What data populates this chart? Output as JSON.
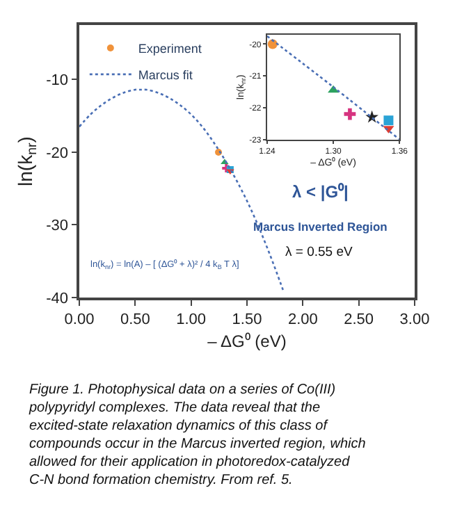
{
  "chart_data": [
    {
      "type": "scatter",
      "xlabel": "– ΔG⁰ (eV)",
      "ylabel": "ln(k$_{nr}$)",
      "xlim": [
        0,
        3
      ],
      "xticks": [
        {
          "value": 0,
          "label": "0.00"
        },
        {
          "value": 0.5,
          "label": "0.50"
        },
        {
          "value": 1,
          "label": "1.00"
        },
        {
          "value": 1.5,
          "label": "1.50"
        },
        {
          "value": 2,
          "label": "2.00"
        },
        {
          "value": 2.5,
          "label": "2.50"
        },
        {
          "value": 3,
          "label": "3.00"
        }
      ],
      "ylim": [
        -40,
        -2.5
      ],
      "yticks": [
        -40,
        -30,
        -20,
        -10
      ],
      "legend": "top left",
      "series": [
        {
          "name": "Experiment",
          "color": "#f0923a",
          "marker": "circle",
          "x": [
            1.245
          ],
          "values": [
            -20.0
          ]
        },
        {
          "color": "#2ca25f",
          "marker": "triangle",
          "x": [
            1.3
          ],
          "values": [
            -21.4
          ]
        },
        {
          "color": "#d6337f",
          "marker": "cross",
          "x": [
            1.315
          ],
          "values": [
            -22.2
          ]
        },
        {
          "color": "#2aa3d6",
          "marker": "square",
          "x": [
            1.35
          ],
          "values": [
            -22.4
          ]
        },
        {
          "color": "#e03c31",
          "marker": "triangle-down",
          "x": [
            1.35
          ],
          "values": [
            -22.6
          ]
        },
        {
          "name": "Marcus fit",
          "type": "line",
          "color": "#4a6fb5",
          "line_style": "dotted",
          "x": [
            0,
            0.1,
            0.2,
            0.3,
            0.4,
            0.5,
            0.55,
            0.6,
            0.7,
            0.8,
            0.9,
            1.0,
            1.1,
            1.2,
            1.3,
            1.4,
            1.5,
            1.6,
            1.7,
            1.8,
            1.83
          ],
          "values": [
            -16.5,
            -14.8,
            -13.5,
            -12.5,
            -11.8,
            -11.4,
            -11.4,
            -11.4,
            -11.8,
            -12.5,
            -13.5,
            -14.8,
            -16.5,
            -18.6,
            -21.0,
            -23.7,
            -26.7,
            -30.1,
            -33.9,
            -38.0,
            -39.3
          ]
        }
      ],
      "annotations": [
        "λ < |G⁰|",
        "Marcus Inverted Region",
        "λ = 0.55 eV",
        "ln(k$_{nr}$) = ln(A) – [ (ΔG⁰ + λ)² / 4 k$_{B}$ T λ]",
        "Figure 1. Photophysical data on a series of Co(III) polypyridyl complexes. The data reveal that the excited-state relaxation dynamics of this class of compounds occur in the Marcus inverted region, which allowed for their application in photoredox-catalyzed C-N bond formation chemistry. From ref. 5."
      ]
    },
    {
      "type": "scatter",
      "xlabel": "– ΔG⁰ (eV)",
      "ylabel": "ln(k$_{nr}$)",
      "xlim": [
        1.24,
        1.36
      ],
      "xticks": [
        {
          "value": 1.24,
          "label": "1.24"
        },
        {
          "value": 1.3,
          "label": "1.30"
        },
        {
          "value": 1.36,
          "label": "1.36"
        }
      ],
      "ylim": [
        -23,
        -19.7
      ],
      "yticks": [
        -23,
        -22,
        -21,
        -20
      ],
      "series": [
        {
          "color": "#f0923a",
          "marker": "circle",
          "x": [
            1.245
          ],
          "values": [
            -20.0
          ]
        },
        {
          "color": "#2ca25f",
          "marker": "triangle",
          "x": [
            1.3
          ],
          "values": [
            -21.45
          ]
        },
        {
          "color": "#d6337f",
          "marker": "cross",
          "x": [
            1.315
          ],
          "values": [
            -22.2
          ]
        },
        {
          "color": "#222222",
          "marker": "star",
          "x": [
            1.335
          ],
          "values": [
            -22.3
          ]
        },
        {
          "color": "#2aa3d6",
          "marker": "square",
          "x": [
            1.35
          ],
          "values": [
            -22.4
          ]
        },
        {
          "color": "#e03c31",
          "marker": "triangle-down",
          "x": [
            1.35
          ],
          "values": [
            -22.65
          ]
        },
        {
          "type": "line",
          "color": "#4a6fb5",
          "line_style": "dotted",
          "x": [
            1.24,
            1.3,
            1.36
          ],
          "values": [
            -19.75,
            -21.35,
            -23.0
          ]
        }
      ]
    }
  ]
}
